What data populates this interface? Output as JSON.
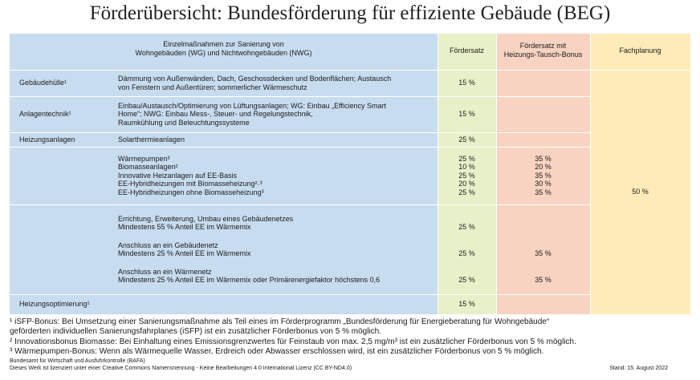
{
  "title": "Förderübersicht: Bundesförderung für effiziente Gebäude (BEG)",
  "table": {
    "header": {
      "measures": [
        "Einzelmaßnahmen zur Sanierung von",
        "Wohngebäuden (WG) und Nichtwohngebäuden (NWG)"
      ],
      "rate": "Fördersatz",
      "bonus": [
        "Fördersatz mit",
        "Heizungs-Tausch-Bonus"
      ],
      "planning": "Fachplanung"
    },
    "rows": [
      {
        "category": "Gebäudehülle¹",
        "items": [
          {
            "lines": [
              "Dämmung von Außenwänden, Dach, Geschossdecken und Bodenflächen; Austausch",
              "von Fenstern und Außentüren; sommerlicher Wärmeschutz"
            ],
            "rate": "15 %"
          }
        ]
      },
      {
        "category": "Anlagentechnik¹",
        "items": [
          {
            "lines": [
              "Einbau/Austausch/Optimierung von Lüftungsanlagen; WG: Einbau „Efficiency Smart",
              "Home“; NWG: Einbau Mess-, Steuer- und Regelungstechnik,",
              "Raumkühlung und Beleuchtungssysteme"
            ],
            "rate": "15 %"
          }
        ]
      },
      {
        "category": "Heizungsanlagen",
        "items": [
          {
            "lines": [
              "Solarthermieanlagen"
            ],
            "rate": "25 %"
          }
        ]
      },
      {
        "items": [
          {
            "lines": [
              "Wärmepumpen³"
            ],
            "rate": "25 %",
            "bonus": "35 %"
          },
          {
            "lines": [
              "Biomasseanlagen²"
            ],
            "rate": "10 %",
            "bonus": "20 %"
          },
          {
            "lines": [
              "Innovative Heizanlagen auf EE-Basis"
            ],
            "rate": "25 %",
            "bonus": "35 %"
          },
          {
            "lines": [
              "EE-Hybridheizungen mit Biomasseheizung²˒³"
            ],
            "rate": "20 %",
            "bonus": "30 %"
          },
          {
            "lines": [
              "EE-Hybridheizungen ohne Biomasseheizung³"
            ],
            "rate": "25 %",
            "bonus": "35 %"
          }
        ]
      },
      {
        "items": [
          {
            "lines": [
              "Errichtung, Erweiterung, Umbau eines Gebäudenetzes",
              "Mindestens 55 % Anteil EE im Wärmemix"
            ],
            "rate": "25 %"
          },
          {
            "lines": [
              "Anschluss an ein Gebäudenetz",
              "Mindestens 25 % Anteil EE im Wärmemix"
            ],
            "rate": "25 %",
            "bonus": "35 %"
          },
          {
            "lines": [
              "Anschluss an ein Wärmenetz",
              "Mindestens 25 % Anteil EE im Wärmemix oder Primärenergiefaktor höchstens 0,6"
            ],
            "rate": "25 %",
            "bonus": "35 %"
          }
        ]
      },
      {
        "category": "Heizungsoptimierung¹",
        "items": [
          {
            "lines": [],
            "rate": "15 %"
          }
        ]
      }
    ],
    "planning": "50 %"
  },
  "footnotes": [
    [
      "¹ iSFP-Bonus: Bei Umsetzung einer Sanierungsmaßnahme als Teil eines im Förderprogramm „Bundesförderung für Energieberatung für Wohngebäude“",
      "geförderten individuellen Sanierungsfahrplanes (iSFP) ist ein zusätzlicher Förderbonus von 5 % möglich."
    ],
    [
      "² Innovationsbonus Biomasse: Bei Einhaltung eines Emissionsgrenzwertes für Feinstaub von max. 2,5 mg/m³ ist ein zusätzlicher Förderbonus von 5 % möglich."
    ],
    [
      "³ Wärmepumpen-Bonus: Wenn als Wärmequelle Wasser, Erdreich oder Abwasser erschlossen wird, ist ein zusätzlicher Förderbonus von 5 % möglich."
    ]
  ],
  "credits": [
    "Bundesamt für Wirtschaft und Ausfuhrkontrolle (BAFA)",
    "Dieses Werk ist lizenziert unter einer Creative Commons Namensnennung - Keine Bearbeitungen 4.0 International Lizenz (CC BY-ND4.0)"
  ],
  "date": "Stand: 15. August 2022"
}
